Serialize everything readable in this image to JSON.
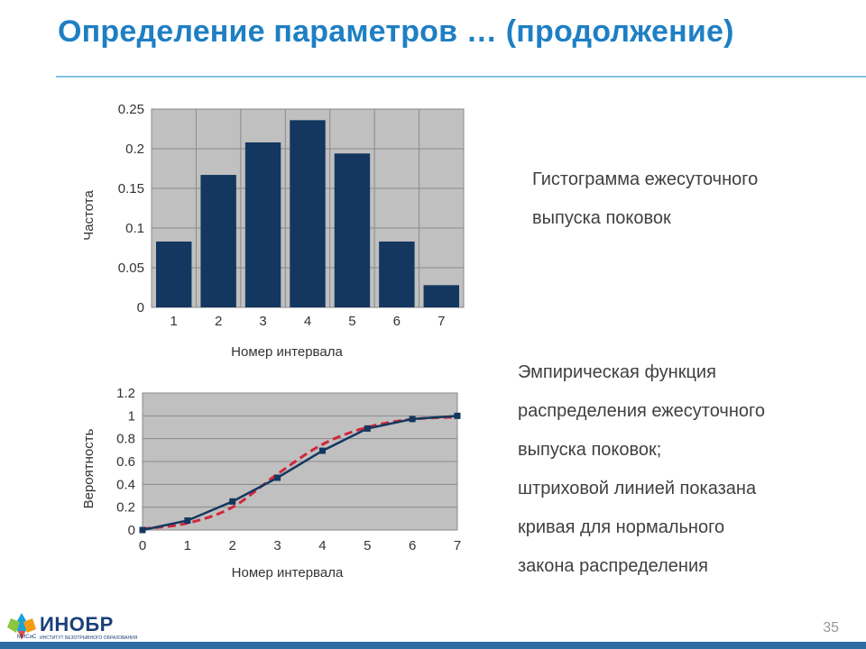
{
  "slide": {
    "title": "Определение параметров … (продолжение)",
    "number": "35"
  },
  "logo": {
    "name": "ИНОБР",
    "prefix": "МИСиС",
    "subtitle": "ИНСТИТУТ БЕЗОТРЫВНОГО ОБРАЗОВАНИЯ"
  },
  "captions": {
    "histogram": [
      "Гистограмма ежесуточного",
      "выпуска поковок"
    ],
    "cdf": [
      "Эмпирическая функция",
      "распределения ежесуточного",
      "выпуска поковок;",
      "штриховой линией показана",
      "кривая для нормального",
      "закона распределения"
    ]
  },
  "colors": {
    "title": "#1e7fc4",
    "bar": "#14375f",
    "plot_bg": "#c0c0c0",
    "dashed_line": "#d0273a"
  },
  "chart_data": [
    {
      "type": "bar",
      "categories": [
        "1",
        "2",
        "3",
        "4",
        "5",
        "6",
        "7"
      ],
      "values": [
        0.083,
        0.167,
        0.208,
        0.236,
        0.194,
        0.083,
        0.028
      ],
      "xlabel": "Номер интервала",
      "ylabel": "Частота",
      "ylim": [
        0,
        0.25
      ],
      "yticks": [
        "0",
        "0.05",
        "0.1",
        "0.15",
        "0.2",
        "0.25"
      ],
      "grid": true
    },
    {
      "type": "line",
      "x": [
        0,
        1,
        2,
        3,
        4,
        5,
        6,
        7
      ],
      "xticks": [
        "0",
        "1",
        "2",
        "3",
        "4",
        "5",
        "6",
        "7"
      ],
      "series": [
        {
          "values": [
            0,
            0.083,
            0.25,
            0.458,
            0.694,
            0.889,
            0.972,
            1.0
          ],
          "style": "solid-markers"
        },
        {
          "values": [
            0.01,
            0.06,
            0.2,
            0.49,
            0.75,
            0.9,
            0.97,
            0.99
          ],
          "style": "dashed"
        }
      ],
      "xlabel": "Номер интервала",
      "ylabel": "Вероятность",
      "ylim": [
        0,
        1.2
      ],
      "yticks": [
        "0",
        "0.2",
        "0.4",
        "0.6",
        "0.8",
        "1",
        "1.2"
      ],
      "grid": true
    }
  ]
}
